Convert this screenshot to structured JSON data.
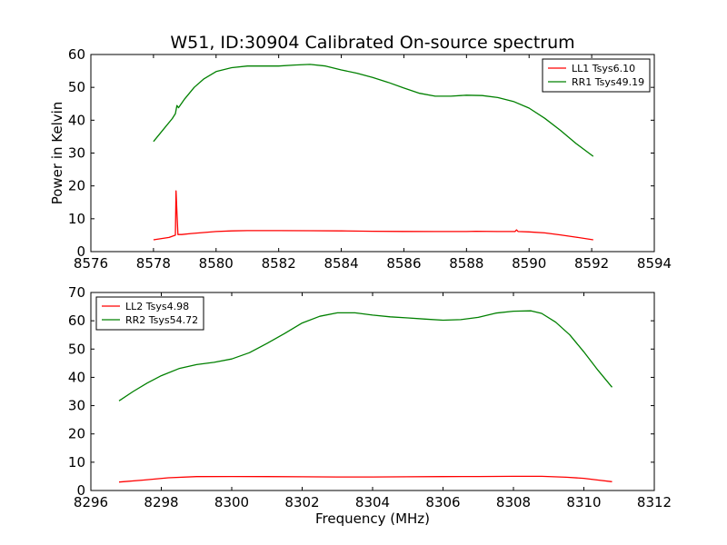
{
  "title": "W51, ID:30904 Calibrated On-source spectrum",
  "chart_data": [
    {
      "type": "line",
      "ylabel": "Power in Kelvin",
      "xlabel": "",
      "xlim": [
        8576,
        8594
      ],
      "ylim": [
        0,
        60
      ],
      "xticks": [
        "8576",
        "8578",
        "8580",
        "8582",
        "8584",
        "8586",
        "8588",
        "8590",
        "8592",
        "8594"
      ],
      "yticks": [
        "0",
        "10",
        "20",
        "30",
        "40",
        "50",
        "60"
      ],
      "legend_position": "top-right",
      "series": [
        {
          "name": "LL1 Tsys6.10",
          "color": "#ff0000",
          "x": [
            8578.0,
            8578.5,
            8578.7,
            8578.72,
            8578.75,
            8578.78,
            8578.9,
            8579.2,
            8579.6,
            8580.0,
            8580.5,
            8581.0,
            8582.0,
            8583.0,
            8584.0,
            8585.0,
            8586.0,
            8587.0,
            8588.0,
            8588.3,
            8589.0,
            8589.55,
            8589.6,
            8589.65,
            8590.0,
            8590.5,
            8591.0,
            8591.5,
            8592.05
          ],
          "y": [
            3.6,
            4.3,
            5.0,
            18.5,
            12.0,
            5.2,
            5.2,
            5.5,
            5.8,
            6.1,
            6.3,
            6.4,
            6.4,
            6.35,
            6.3,
            6.2,
            6.15,
            6.1,
            6.1,
            6.2,
            6.1,
            6.1,
            6.6,
            6.1,
            6.0,
            5.7,
            5.1,
            4.4,
            3.6
          ]
        },
        {
          "name": "RR1 Tsys49.19",
          "color": "#008000",
          "x": [
            8578.0,
            8578.3,
            8578.6,
            8578.7,
            8578.75,
            8578.8,
            8579.0,
            8579.3,
            8579.6,
            8580.0,
            8580.5,
            8581.0,
            8581.5,
            8582.0,
            8582.5,
            8583.0,
            8583.5,
            8584.0,
            8584.5,
            8585.0,
            8585.5,
            8586.0,
            8586.5,
            8587.0,
            8587.5,
            8588.0,
            8588.5,
            8589.0,
            8589.5,
            8590.0,
            8590.5,
            8591.0,
            8591.5,
            8592.05
          ],
          "y": [
            33.5,
            37.0,
            40.5,
            42.0,
            44.5,
            43.8,
            46.5,
            50.0,
            52.5,
            54.8,
            56.0,
            56.5,
            56.5,
            56.5,
            56.8,
            57.0,
            56.5,
            55.3,
            54.3,
            53.0,
            51.5,
            49.8,
            48.2,
            47.3,
            47.3,
            47.6,
            47.5,
            46.9,
            45.7,
            43.7,
            40.6,
            36.9,
            32.9,
            29.0
          ]
        }
      ]
    },
    {
      "type": "line",
      "ylabel": "",
      "xlabel": "Frequency (MHz)",
      "xlim": [
        8296,
        8312
      ],
      "ylim": [
        0,
        70
      ],
      "xticks": [
        "8296",
        "8298",
        "8300",
        "8302",
        "8304",
        "8306",
        "8308",
        "8310",
        "8312"
      ],
      "yticks": [
        "0",
        "10",
        "20",
        "30",
        "40",
        "50",
        "60",
        "70"
      ],
      "legend_position": "top-left",
      "series": [
        {
          "name": "LL2 Tsys4.98",
          "color": "#ff0000",
          "x": [
            8296.8,
            8297.5,
            8298.2,
            8299.0,
            8300.0,
            8301.0,
            8302.0,
            8303.0,
            8304.0,
            8305.0,
            8306.0,
            8307.0,
            8308.0,
            8308.8,
            8309.5,
            8310.0,
            8310.4,
            8310.8
          ],
          "y": [
            3.0,
            3.7,
            4.5,
            4.9,
            4.95,
            4.9,
            4.85,
            4.8,
            4.8,
            4.85,
            4.9,
            4.95,
            5.0,
            5.0,
            4.7,
            4.3,
            3.7,
            3.1
          ]
        },
        {
          "name": "RR2 Tsys54.72",
          "color": "#008000",
          "x": [
            8296.8,
            8297.2,
            8297.6,
            8298.0,
            8298.5,
            8299.0,
            8299.5,
            8300.0,
            8300.5,
            8301.0,
            8301.5,
            8302.0,
            8302.5,
            8303.0,
            8303.5,
            8304.0,
            8304.5,
            8305.0,
            8305.5,
            8306.0,
            8306.5,
            8307.0,
            8307.5,
            8308.0,
            8308.5,
            8308.8,
            8309.2,
            8309.6,
            8310.0,
            8310.4,
            8310.8
          ],
          "y": [
            31.7,
            35.0,
            38.0,
            40.6,
            43.1,
            44.5,
            45.3,
            46.5,
            48.7,
            52.0,
            55.5,
            59.2,
            61.6,
            62.8,
            62.8,
            62.0,
            61.4,
            61.0,
            60.6,
            60.2,
            60.4,
            61.2,
            62.7,
            63.4,
            63.5,
            62.6,
            59.5,
            55.0,
            49.0,
            42.5,
            36.5
          ]
        }
      ]
    }
  ]
}
